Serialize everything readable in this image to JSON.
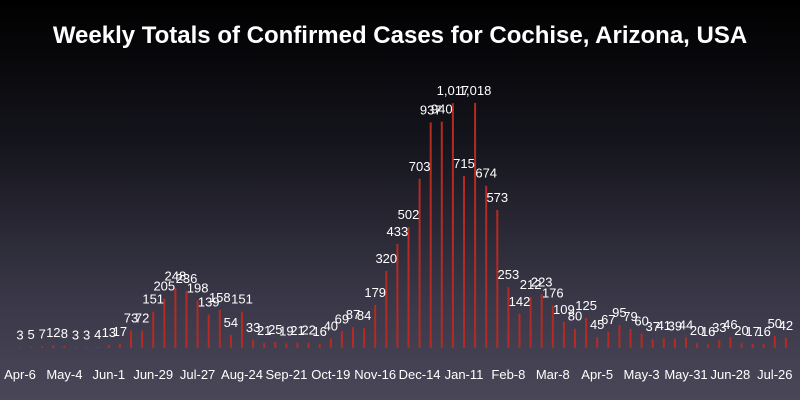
{
  "chart_data": {
    "type": "bar",
    "title": "Weekly Totals of Confirmed Cases for Cochise, Arizona, USA",
    "xlabel": "",
    "ylabel": "",
    "ylim": [
      0,
      1080
    ],
    "grid": false,
    "legend": "none",
    "colors": {
      "bar": "#b52a22",
      "text": "#ffffff"
    },
    "tick_labels": [
      "Apr-6",
      "May-4",
      "Jun-1",
      "Jun-29",
      "Jul-27",
      "Aug-24",
      "Sep-21",
      "Oct-19",
      "Nov-16",
      "Dec-14",
      "Jan-11",
      "Feb-8",
      "Mar-8",
      "Apr-5",
      "May-3",
      "May-31",
      "Jun-28",
      "Jul-26"
    ],
    "values": [
      3,
      5,
      7,
      12,
      8,
      3,
      3,
      4,
      13,
      17,
      73,
      72,
      151,
      205,
      248,
      236,
      198,
      139,
      158,
      54,
      151,
      33,
      21,
      25,
      19,
      21,
      22,
      16,
      40,
      69,
      87,
      84,
      179,
      320,
      433,
      502,
      703,
      937,
      940,
      1017,
      715,
      1018,
      674,
      573,
      253,
      142,
      212,
      223,
      176,
      109,
      80,
      125,
      45,
      67,
      95,
      79,
      60,
      37,
      41,
      39,
      44,
      20,
      16,
      33,
      46,
      20,
      17,
      16,
      50,
      42
    ],
    "data_labels": [
      "3",
      "5",
      "7",
      "12",
      "8",
      "3",
      "3",
      "4",
      "13",
      "17",
      "73",
      "72",
      "151",
      "205",
      "248",
      "236",
      "198",
      "139",
      "158",
      "54",
      "151",
      "33",
      "21",
      "25",
      "19",
      "21",
      "22",
      "16",
      "40",
      "69",
      "87",
      "84",
      "179",
      "320",
      "433",
      "502",
      "703",
      "937",
      "940",
      "1,017",
      "715",
      "1,018",
      "674",
      "573",
      "253",
      "142",
      "212",
      "223",
      "176",
      "109",
      "80",
      "125",
      "45",
      "67",
      "95",
      "79",
      "60",
      "37",
      "41",
      "39",
      "44",
      "20",
      "16",
      "33",
      "46",
      "20",
      "17",
      "16",
      "50",
      "42"
    ]
  }
}
